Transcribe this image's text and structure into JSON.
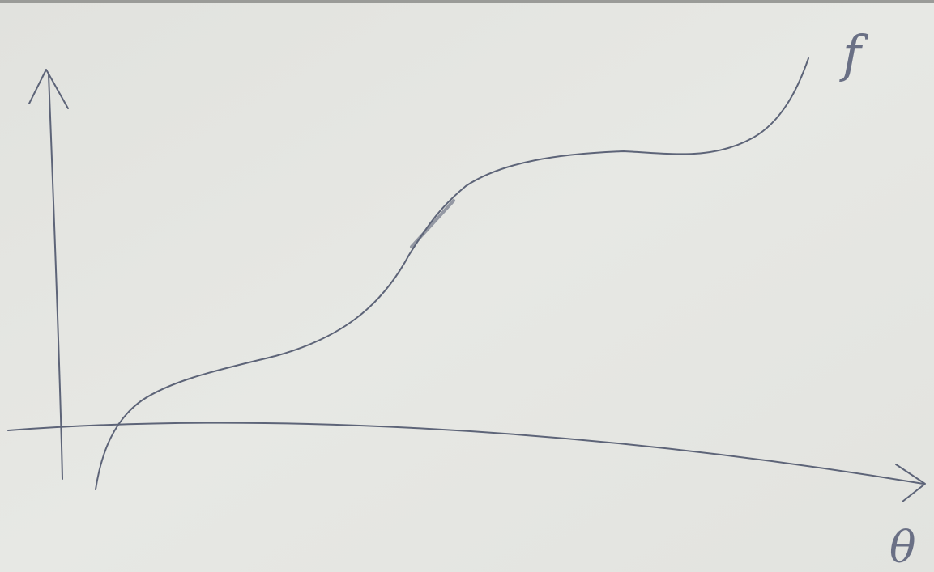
{
  "curve_label": "f",
  "x_axis_label": "θ"
}
